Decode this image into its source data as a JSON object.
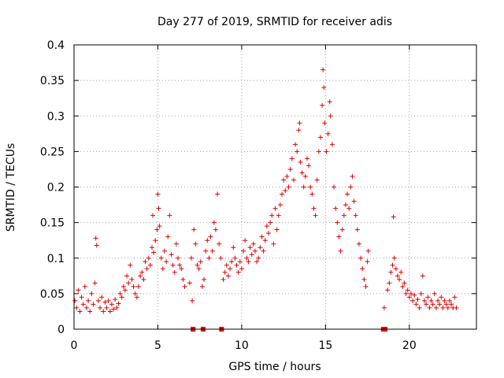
{
  "chart_data": {
    "type": "scatter",
    "title": "Day 277 of 2019, SRMTID for receiver adis",
    "xlabel": "GPS time / hours",
    "ylabel": "SRMTID / TECUs",
    "xlim": [
      0,
      24
    ],
    "ylim": [
      0,
      0.4
    ],
    "xticks": [
      0,
      5,
      10,
      15,
      20
    ],
    "xtick_labels": [
      "0",
      "5",
      "10",
      "15",
      "20"
    ],
    "yticks": [
      0,
      0.05,
      0.1,
      0.15,
      0.2,
      0.25,
      0.3,
      0.35,
      0.4
    ],
    "ytick_labels": [
      "0",
      "0.05",
      "0.1",
      "0.15",
      "0.2",
      "0.25",
      "0.3",
      "0.35",
      "0.4"
    ],
    "grid": true,
    "marker_color": "#e00000",
    "marker": "plus",
    "series": [
      {
        "points": [
          [
            0.05,
            0.04
          ],
          [
            0.15,
            0.03
          ],
          [
            0.25,
            0.055
          ],
          [
            0.35,
            0.025
          ],
          [
            0.45,
            0.045
          ],
          [
            0.55,
            0.035
          ],
          [
            0.65,
            0.06
          ],
          [
            0.75,
            0.03
          ],
          [
            0.85,
            0.04
          ],
          [
            0.95,
            0.025
          ],
          [
            1.05,
            0.05
          ],
          [
            1.15,
            0.035
          ],
          [
            1.25,
            0.065
          ],
          [
            1.3,
            0.128
          ],
          [
            1.35,
            0.118
          ],
          [
            1.45,
            0.04
          ],
          [
            1.55,
            0.03
          ],
          [
            1.65,
            0.045
          ],
          [
            1.75,
            0.025
          ],
          [
            1.85,
            0.038
          ],
          [
            1.95,
            0.03
          ],
          [
            2.05,
            0.04
          ],
          [
            2.15,
            0.025
          ],
          [
            2.25,
            0.035
          ],
          [
            2.35,
            0.028
          ],
          [
            2.45,
            0.042
          ],
          [
            2.55,
            0.03
          ],
          [
            2.65,
            0.036
          ],
          [
            2.75,
            0.05
          ],
          [
            2.85,
            0.045
          ],
          [
            2.95,
            0.06
          ],
          [
            3.05,
            0.055
          ],
          [
            3.15,
            0.075
          ],
          [
            3.25,
            0.065
          ],
          [
            3.35,
            0.09
          ],
          [
            3.45,
            0.07
          ],
          [
            3.55,
            0.06
          ],
          [
            3.65,
            0.05
          ],
          [
            3.75,
            0.045
          ],
          [
            3.85,
            0.06
          ],
          [
            3.95,
            0.075
          ],
          [
            4.05,
            0.08
          ],
          [
            4.15,
            0.07
          ],
          [
            4.25,
            0.095
          ],
          [
            4.35,
            0.085
          ],
          [
            4.45,
            0.1
          ],
          [
            4.55,
            0.09
          ],
          [
            4.65,
            0.115
          ],
          [
            4.7,
            0.16
          ],
          [
            4.75,
            0.108
          ],
          [
            4.85,
            0.125
          ],
          [
            4.95,
            0.14
          ],
          [
            5.0,
            0.19
          ],
          [
            5.05,
            0.17
          ],
          [
            5.1,
            0.145
          ],
          [
            5.2,
            0.1
          ],
          [
            5.3,
            0.085
          ],
          [
            5.4,
            0.11
          ],
          [
            5.5,
            0.095
          ],
          [
            5.6,
            0.13
          ],
          [
            5.7,
            0.16
          ],
          [
            5.8,
            0.105
          ],
          [
            5.9,
            0.09
          ],
          [
            6.0,
            0.08
          ],
          [
            6.1,
            0.12
          ],
          [
            6.2,
            0.1
          ],
          [
            6.3,
            0.09
          ],
          [
            6.4,
            0.085
          ],
          [
            6.5,
            0.07
          ],
          [
            6.6,
            0.06
          ],
          [
            6.9,
            0.065
          ],
          [
            7.0,
            0.1
          ],
          [
            7.05,
            0.04
          ],
          [
            7.15,
            0.14
          ],
          [
            7.25,
            0.12
          ],
          [
            7.35,
            0.09
          ],
          [
            7.45,
            0.085
          ],
          [
            7.55,
            0.095
          ],
          [
            7.65,
            0.06
          ],
          [
            7.75,
            0.07
          ],
          [
            7.85,
            0.11
          ],
          [
            7.95,
            0.125
          ],
          [
            8.05,
            0.1
          ],
          [
            8.15,
            0.13
          ],
          [
            8.25,
            0.11
          ],
          [
            8.35,
            0.15
          ],
          [
            8.45,
            0.14
          ],
          [
            8.55,
            0.19
          ],
          [
            8.65,
            0.12
          ],
          [
            8.75,
            0.1
          ],
          [
            8.9,
            0.07
          ],
          [
            9.0,
            0.08
          ],
          [
            9.1,
            0.09
          ],
          [
            9.2,
            0.075
          ],
          [
            9.3,
            0.085
          ],
          [
            9.4,
            0.095
          ],
          [
            9.5,
            0.115
          ],
          [
            9.6,
            0.1
          ],
          [
            9.7,
            0.09
          ],
          [
            9.8,
            0.08
          ],
          [
            9.9,
            0.095
          ],
          [
            10.0,
            0.085
          ],
          [
            10.1,
            0.11
          ],
          [
            10.2,
            0.125
          ],
          [
            10.3,
            0.1
          ],
          [
            10.4,
            0.095
          ],
          [
            10.5,
            0.115
          ],
          [
            10.6,
            0.105
          ],
          [
            10.7,
            0.12
          ],
          [
            10.8,
            0.11
          ],
          [
            10.9,
            0.095
          ],
          [
            11.0,
            0.1
          ],
          [
            11.1,
            0.115
          ],
          [
            11.2,
            0.13
          ],
          [
            11.3,
            0.11
          ],
          [
            11.4,
            0.125
          ],
          [
            11.5,
            0.145
          ],
          [
            11.6,
            0.135
          ],
          [
            11.7,
            0.15
          ],
          [
            11.8,
            0.16
          ],
          [
            11.9,
            0.12
          ],
          [
            12.0,
            0.17
          ],
          [
            12.1,
            0.14
          ],
          [
            12.2,
            0.16
          ],
          [
            12.3,
            0.175
          ],
          [
            12.4,
            0.19
          ],
          [
            12.5,
            0.21
          ],
          [
            12.6,
            0.195
          ],
          [
            12.7,
            0.215
          ],
          [
            12.8,
            0.2
          ],
          [
            12.9,
            0.225
          ],
          [
            13.0,
            0.24
          ],
          [
            13.1,
            0.21
          ],
          [
            13.2,
            0.26
          ],
          [
            13.3,
            0.25
          ],
          [
            13.4,
            0.28
          ],
          [
            13.45,
            0.29
          ],
          [
            13.5,
            0.235
          ],
          [
            13.6,
            0.22
          ],
          [
            13.7,
            0.2
          ],
          [
            13.8,
            0.215
          ],
          [
            13.9,
            0.24
          ],
          [
            14.0,
            0.23
          ],
          [
            14.1,
            0.2
          ],
          [
            14.2,
            0.19
          ],
          [
            14.3,
            0.17
          ],
          [
            14.4,
            0.16
          ],
          [
            14.5,
            0.21
          ],
          [
            14.6,
            0.25
          ],
          [
            14.7,
            0.27
          ],
          [
            14.8,
            0.315
          ],
          [
            14.85,
            0.365
          ],
          [
            14.9,
            0.34
          ],
          [
            14.95,
            0.29
          ],
          [
            15.05,
            0.25
          ],
          [
            15.15,
            0.275
          ],
          [
            15.25,
            0.32
          ],
          [
            15.3,
            0.3
          ],
          [
            15.4,
            0.26
          ],
          [
            15.5,
            0.2
          ],
          [
            15.6,
            0.17
          ],
          [
            15.7,
            0.15
          ],
          [
            15.8,
            0.13
          ],
          [
            15.9,
            0.11
          ],
          [
            16.0,
            0.14
          ],
          [
            16.1,
            0.16
          ],
          [
            16.2,
            0.175
          ],
          [
            16.3,
            0.19
          ],
          [
            16.4,
            0.17
          ],
          [
            16.5,
            0.2
          ],
          [
            16.6,
            0.215
          ],
          [
            16.7,
            0.18
          ],
          [
            16.8,
            0.16
          ],
          [
            16.9,
            0.14
          ],
          [
            17.0,
            0.12
          ],
          [
            17.1,
            0.1
          ],
          [
            17.2,
            0.085
          ],
          [
            17.3,
            0.07
          ],
          [
            17.4,
            0.06
          ],
          [
            17.5,
            0.095
          ],
          [
            17.55,
            0.11
          ],
          [
            18.5,
            0.03
          ],
          [
            18.7,
            0.055
          ],
          [
            18.8,
            0.065
          ],
          [
            18.9,
            0.08
          ],
          [
            19.0,
            0.09
          ],
          [
            19.05,
            0.158
          ],
          [
            19.1,
            0.1
          ],
          [
            19.2,
            0.085
          ],
          [
            19.3,
            0.075
          ],
          [
            19.4,
            0.07
          ],
          [
            19.5,
            0.08
          ],
          [
            19.6,
            0.06
          ],
          [
            19.7,
            0.065
          ],
          [
            19.8,
            0.05
          ],
          [
            19.9,
            0.055
          ],
          [
            20.0,
            0.045
          ],
          [
            20.1,
            0.05
          ],
          [
            20.2,
            0.04
          ],
          [
            20.3,
            0.048
          ],
          [
            20.4,
            0.035
          ],
          [
            20.5,
            0.042
          ],
          [
            20.6,
            0.03
          ],
          [
            20.7,
            0.05
          ],
          [
            20.8,
            0.075
          ],
          [
            20.9,
            0.04
          ],
          [
            21.0,
            0.035
          ],
          [
            21.1,
            0.045
          ],
          [
            21.2,
            0.03
          ],
          [
            21.3,
            0.04
          ],
          [
            21.4,
            0.035
          ],
          [
            21.5,
            0.05
          ],
          [
            21.6,
            0.03
          ],
          [
            21.7,
            0.04
          ],
          [
            21.8,
            0.035
          ],
          [
            21.9,
            0.045
          ],
          [
            22.0,
            0.03
          ],
          [
            22.1,
            0.04
          ],
          [
            22.2,
            0.035
          ],
          [
            22.3,
            0.03
          ],
          [
            22.4,
            0.04
          ],
          [
            22.5,
            0.035
          ],
          [
            22.6,
            0.03
          ],
          [
            22.7,
            0.045
          ],
          [
            22.8,
            0.03
          ]
        ]
      }
    ],
    "zero_markers_x": [
      7.1,
      7.7,
      8.8,
      18.45,
      18.55
    ]
  }
}
